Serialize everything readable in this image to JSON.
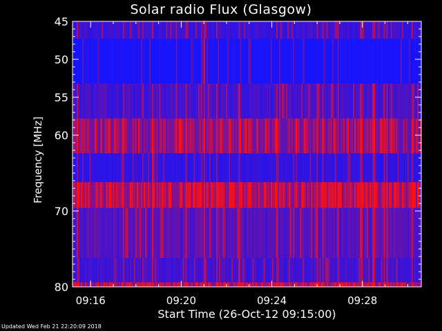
{
  "chart_data": {
    "type": "heatmap",
    "title": "Solar radio Flux (Glasgow)",
    "xlabel": "Start Time (26-Oct-12 09:15:00)",
    "ylabel": "Frequency [MHz]",
    "x_range_minutes": [
      0.2,
      15.6
    ],
    "x_ticks": [
      {
        "label": "09:16",
        "minute": 1
      },
      {
        "label": "09:20",
        "minute": 5
      },
      {
        "label": "09:24",
        "minute": 9
      },
      {
        "label": "09:28",
        "minute": 13
      }
    ],
    "ylim": [
      45,
      80
    ],
    "y_ticks": [
      {
        "label": "45",
        "value": 45
      },
      {
        "label": "50",
        "value": 50
      },
      {
        "label": "55",
        "value": 55
      },
      {
        "label": "60",
        "value": 60
      },
      {
        "label": "70",
        "value": 70
      },
      {
        "label": "80",
        "value": 80
      }
    ],
    "frequency_bands": [
      {
        "from": 45.0,
        "to": 47.3,
        "base_intensity": 0.18
      },
      {
        "from": 47.3,
        "to": 53.2,
        "base_intensity": 0.05
      },
      {
        "from": 53.2,
        "to": 57.8,
        "base_intensity": 0.22
      },
      {
        "from": 57.8,
        "to": 62.4,
        "base_intensity": 0.55
      },
      {
        "from": 62.4,
        "to": 66.2,
        "base_intensity": 0.12
      },
      {
        "from": 66.2,
        "to": 69.6,
        "base_intensity": 0.72
      },
      {
        "from": 69.6,
        "to": 76.2,
        "base_intensity": 0.3
      },
      {
        "from": 76.2,
        "to": 79.4,
        "base_intensity": 0.2
      },
      {
        "from": 79.4,
        "to": 80.0,
        "base_intensity": 0.7
      }
    ],
    "colors": {
      "low": "#1414ff",
      "high": "#ff1010",
      "background": "#000000",
      "axis": "#ffffff"
    }
  },
  "footer": "Updated Wed Feb 21 22:20:09 2018"
}
